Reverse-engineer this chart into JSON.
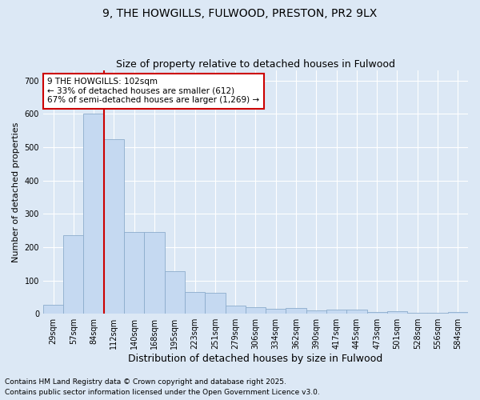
{
  "title_line1": "9, THE HOWGILLS, FULWOOD, PRESTON, PR2 9LX",
  "title_line2": "Size of property relative to detached houses in Fulwood",
  "xlabel": "Distribution of detached houses by size in Fulwood",
  "ylabel": "Number of detached properties",
  "categories": [
    "29sqm",
    "57sqm",
    "84sqm",
    "112sqm",
    "140sqm",
    "168sqm",
    "195sqm",
    "223sqm",
    "251sqm",
    "279sqm",
    "306sqm",
    "334sqm",
    "362sqm",
    "390sqm",
    "417sqm",
    "445sqm",
    "473sqm",
    "501sqm",
    "528sqm",
    "556sqm",
    "584sqm"
  ],
  "values": [
    28,
    235,
    600,
    525,
    245,
    245,
    128,
    65,
    62,
    25,
    20,
    15,
    18,
    10,
    13,
    13,
    5,
    7,
    3,
    2,
    5
  ],
  "bar_color": "#c5d9f1",
  "bar_edge_color": "#8caccc",
  "vline_color": "#cc0000",
  "annotation_text": "9 THE HOWGILLS: 102sqm\n← 33% of detached houses are smaller (612)\n67% of semi-detached houses are larger (1,269) →",
  "annotation_box_facecolor": "#ffffff",
  "annotation_box_edgecolor": "#cc0000",
  "ylim": [
    0,
    730
  ],
  "yticks": [
    0,
    100,
    200,
    300,
    400,
    500,
    600,
    700
  ],
  "background_color": "#dce8f5",
  "grid_color": "#ffffff",
  "footer_line1": "Contains HM Land Registry data © Crown copyright and database right 2025.",
  "footer_line2": "Contains public sector information licensed under the Open Government Licence v3.0.",
  "title_fontsize": 10,
  "subtitle_fontsize": 9,
  "ylabel_fontsize": 8,
  "xlabel_fontsize": 9,
  "tick_fontsize": 7,
  "annotation_fontsize": 7.5,
  "footer_fontsize": 6.5
}
